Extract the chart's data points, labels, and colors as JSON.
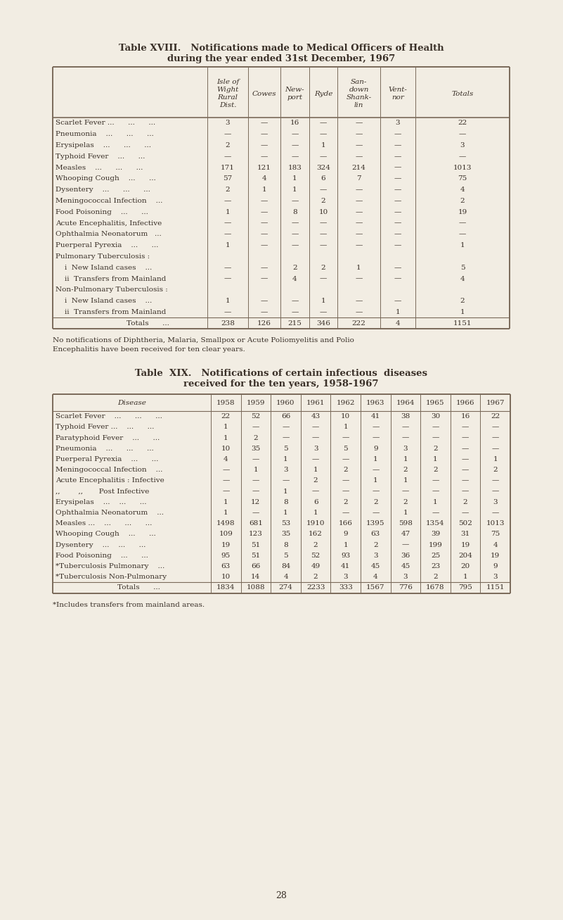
{
  "bg_color": "#f2ede3",
  "text_color": "#3a3028",
  "line_color": "#7a6a5a",
  "page_number": "28",
  "table18": {
    "title_line1": "Table XVIII.   Notifications made to Medical Officers of Health",
    "title_line2": "during the year ended 31st December, 1967",
    "col_headers": [
      "Isle of\nWight\nRural\nDist.",
      "Cowes",
      "New-\nport",
      "Ryde",
      "San-\ndown\nShank-\nlin",
      "Vent-\nnor",
      "Totals"
    ],
    "rows": [
      [
        "Scarlet Fever ...      ...      ...",
        "3",
        "—",
        "16",
        "—",
        "—",
        "3",
        "22"
      ],
      [
        "Pneumonia    ...      ...      ...",
        "—",
        "—",
        "—",
        "—",
        "—",
        "—",
        "—"
      ],
      [
        "Erysipelas    ...      ...      ...",
        "2",
        "—",
        "—",
        "1",
        "—",
        "—",
        "3"
      ],
      [
        "Typhoid Fever    ...      ...",
        "—",
        "—",
        "—",
        "—",
        "—",
        "—",
        "—"
      ],
      [
        "Measles    ...      ...      ...",
        "171",
        "121",
        "183",
        "324",
        "214",
        "—",
        "1013"
      ],
      [
        "Whooping Cough    ...      ...",
        "57",
        "4",
        "1",
        "6",
        "7",
        "—",
        "75"
      ],
      [
        "Dysentery    ...      ...      ...",
        "2",
        "1",
        "1",
        "—",
        "—",
        "—",
        "4"
      ],
      [
        "Meningococcal Infection    ...",
        "—",
        "—",
        "—",
        "2",
        "—",
        "—",
        "2"
      ],
      [
        "Food Poisoning    ...      ...",
        "1",
        "—",
        "8",
        "10",
        "—",
        "—",
        "19"
      ],
      [
        "Acute Encephalitis, Infective",
        "—",
        "—",
        "—",
        "—",
        "—",
        "—",
        "—"
      ],
      [
        "Ophthalmia Neonatorum   ...",
        "—",
        "—",
        "—",
        "—",
        "—",
        "—",
        "—"
      ],
      [
        "Puerperal Pyrexia    ...      ...",
        "1",
        "—",
        "—",
        "—",
        "—",
        "—",
        "1"
      ],
      [
        "Pulmonary Tuberculosis :",
        "",
        "",
        "",
        "",
        "",
        "",
        ""
      ],
      [
        "    i  New Island cases    ...",
        "—",
        "—",
        "2",
        "2",
        "1",
        "—",
        "5"
      ],
      [
        "    ii  Transfers from Mainland",
        "—",
        "—",
        "4",
        "—",
        "—",
        "—",
        "4"
      ],
      [
        "Non-Pulmonary Tuberculosis :",
        "",
        "",
        "",
        "",
        "",
        "",
        ""
      ],
      [
        "    i  New Island cases    ...",
        "1",
        "—",
        "—",
        "1",
        "—",
        "—",
        "2"
      ],
      [
        "    ii  Transfers from Mainland",
        "—",
        "—",
        "—",
        "—",
        "—",
        "1",
        "1"
      ]
    ],
    "totals_row": [
      "Totals      ...",
      "238",
      "126",
      "215",
      "346",
      "222",
      "4",
      "1151"
    ],
    "footnote": "No notifications of Diphtheria, Malaria, Smallpox or Acute Poliomyelitis and Polio\nEncephalitis have been received for ten clear years."
  },
  "table19": {
    "title_line1": "Table  XIX.   Notifications of certain infectious  diseases",
    "title_line2": "received for the ten years, 1958-1967",
    "col_headers": [
      "Disease",
      "1958",
      "1959",
      "1960",
      "1961",
      "1962",
      "1963",
      "1964",
      "1965",
      "1966",
      "1967"
    ],
    "rows": [
      [
        "Scarlet Fever    ...      ...      ...",
        "22",
        "52",
        "66",
        "43",
        "10",
        "41",
        "38",
        "30",
        "16",
        "22"
      ],
      [
        "Typhoid Fever ...    ...      ...",
        "1",
        "—",
        "—",
        "—",
        "1",
        "—",
        "—",
        "—",
        "—",
        "—"
      ],
      [
        "Paratyphoid Fever    ...      ...",
        "1",
        "2",
        "—",
        "—",
        "—",
        "—",
        "—",
        "—",
        "—",
        "—"
      ],
      [
        "Pneumonia    ...      ...      ...",
        "10",
        "35",
        "5",
        "3",
        "5",
        "9",
        "3",
        "2",
        "—",
        "—"
      ],
      [
        "Puerperal Pyrexia    ...      ...",
        "4",
        "—",
        "1",
        "—",
        "—",
        "1",
        "1",
        "1",
        "—",
        "1"
      ],
      [
        "Meningococcal Infection    ...",
        "—",
        "1",
        "3",
        "1",
        "2",
        "—",
        "2",
        "2",
        "—",
        "2"
      ],
      [
        "Acute Encephalitis : Infective",
        "—",
        "—",
        "—",
        "2",
        "—",
        "1",
        "1",
        "—",
        "—",
        "—"
      ],
      [
        ",,        ,,       Post Infective",
        "—",
        "—",
        "1",
        "—",
        "—",
        "—",
        "—",
        "—",
        "—",
        "—"
      ],
      [
        "Erysipelas    ...    ...      ...",
        "1",
        "12",
        "8",
        "6",
        "2",
        "2",
        "2",
        "1",
        "2",
        "3"
      ],
      [
        "Ophthalmia Neonatorum    ...",
        "1",
        "—",
        "1",
        "1",
        "—",
        "—",
        "1",
        "—",
        "—",
        "—"
      ],
      [
        "Measles ...    ...      ...      ...",
        "1498",
        "681",
        "53",
        "1910",
        "166",
        "1395",
        "598",
        "1354",
        "502",
        "1013"
      ],
      [
        "Whooping Cough    ...      ...",
        "109",
        "123",
        "35",
        "162",
        "9",
        "63",
        "47",
        "39",
        "31",
        "75"
      ],
      [
        "Dysentery    ...    ...      ...",
        "19",
        "51",
        "8",
        "2",
        "1",
        "2",
        "—",
        "199",
        "19",
        "4"
      ],
      [
        "Food Poisoning    ...      ...",
        "95",
        "51",
        "5",
        "52",
        "93",
        "3",
        "36",
        "25",
        "204",
        "19"
      ],
      [
        "*Tuberculosis Pulmonary    ...",
        "63",
        "66",
        "84",
        "49",
        "41",
        "45",
        "45",
        "23",
        "20",
        "9"
      ],
      [
        "*Tuberculosis Non-Pulmonary",
        "10",
        "14",
        "4",
        "2",
        "3",
        "4",
        "3",
        "2",
        "1",
        "3"
      ]
    ],
    "totals_row": [
      "Totals      ...",
      "1834",
      "1088",
      "274",
      "2233",
      "333",
      "1567",
      "776",
      "1678",
      "795",
      "1151"
    ],
    "footnote": "*Includes transfers from mainland areas."
  }
}
